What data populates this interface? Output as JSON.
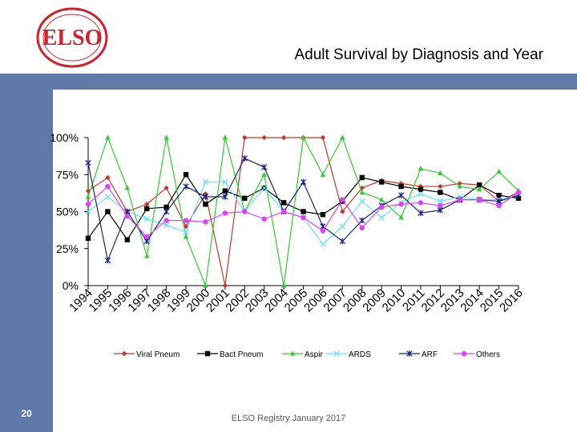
{
  "slide": {
    "title": "Adult Survival by Diagnosis and Year",
    "page_number": "20",
    "footer": "ELSO Registry January 2017",
    "logo_text": "ELSO",
    "colors": {
      "sidebar": "#5f7aa8",
      "logo_red": "#d0202e"
    }
  },
  "chart_data": {
    "type": "line",
    "title": "Adult Survival by Diagnosis and Year",
    "xlabel": "",
    "ylabel": "",
    "categories": [
      "1994",
      "1995",
      "1996",
      "1997",
      "1998",
      "1999",
      "2000",
      "2001",
      "2002",
      "2003",
      "2004",
      "2005",
      "2006",
      "2007",
      "2008",
      "2009",
      "2010",
      "2011",
      "2012",
      "2013",
      "2014",
      "2015",
      "2016"
    ],
    "y_ticks": [
      "0%",
      "25%",
      "50%",
      "75%",
      "100%"
    ],
    "ylim": [
      0,
      100
    ],
    "legend_position": "bottom",
    "grid": false,
    "series": [
      {
        "name": "Viral Pneum",
        "color": "#c0392b",
        "marker": "diamond",
        "values": [
          64,
          73,
          50,
          55,
          66,
          40,
          62,
          0,
          100,
          100,
          100,
          100,
          100,
          50,
          66,
          71,
          69,
          67,
          67,
          69,
          68,
          57,
          63
        ]
      },
      {
        "name": "Bact Pneum",
        "color": "#000000",
        "marker": "square",
        "values": [
          32,
          50,
          31,
          52,
          53,
          75,
          55,
          64,
          59,
          66,
          56,
          50,
          48,
          57,
          73,
          70,
          67,
          65,
          63,
          58,
          68,
          61,
          59
        ]
      },
      {
        "name": "Aspir",
        "color": "#33cc33",
        "marker": "triangle",
        "values": [
          60,
          100,
          66,
          20,
          100,
          33,
          0,
          100,
          50,
          75,
          0,
          100,
          75,
          100,
          63,
          58,
          46,
          79,
          76,
          67,
          65,
          77,
          64
        ]
      },
      {
        "name": "ARDS",
        "color": "#66e0ff",
        "marker": "x",
        "values": [
          50,
          60,
          50,
          45,
          41,
          36,
          70,
          70,
          50,
          66,
          50,
          46,
          28,
          40,
          57,
          46,
          56,
          62,
          57,
          60,
          58,
          58,
          61
        ]
      },
      {
        "name": "ARF",
        "color": "#1a237e",
        "marker": "star",
        "values": [
          83,
          17,
          50,
          30,
          50,
          67,
          60,
          60,
          86,
          80,
          50,
          70,
          40,
          30,
          44,
          54,
          61,
          49,
          51,
          58,
          58,
          57,
          61
        ]
      },
      {
        "name": "Others",
        "color": "#e040fb",
        "marker": "circle",
        "values": [
          55,
          67,
          47,
          33,
          44,
          44,
          43,
          49,
          50,
          45,
          50,
          46,
          37,
          58,
          39,
          53,
          55,
          56,
          54,
          58,
          58,
          54,
          63
        ]
      }
    ]
  }
}
